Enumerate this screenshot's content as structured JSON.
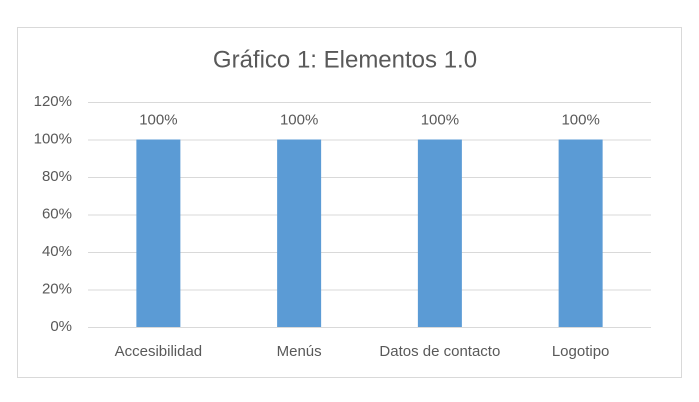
{
  "chart_data": {
    "type": "bar",
    "title": "Gráfico 1: Elementos 1.0",
    "categories": [
      "Accesibilidad",
      "Menús",
      "Datos de contacto",
      "Logotipo"
    ],
    "values": [
      100,
      100,
      100,
      100
    ],
    "value_labels": [
      "100%",
      "100%",
      "100%",
      "100%"
    ],
    "color": "#5b9bd5",
    "ylim": [
      0,
      120
    ],
    "yticks": [
      {
        "value": 0,
        "label": "0%"
      },
      {
        "value": 20,
        "label": "20%"
      },
      {
        "value": 40,
        "label": "40%"
      },
      {
        "value": 60,
        "label": "60%"
      },
      {
        "value": 80,
        "label": "80%"
      },
      {
        "value": 100,
        "label": "100%"
      },
      {
        "value": 120,
        "label": "120%"
      }
    ],
    "grid": true
  }
}
